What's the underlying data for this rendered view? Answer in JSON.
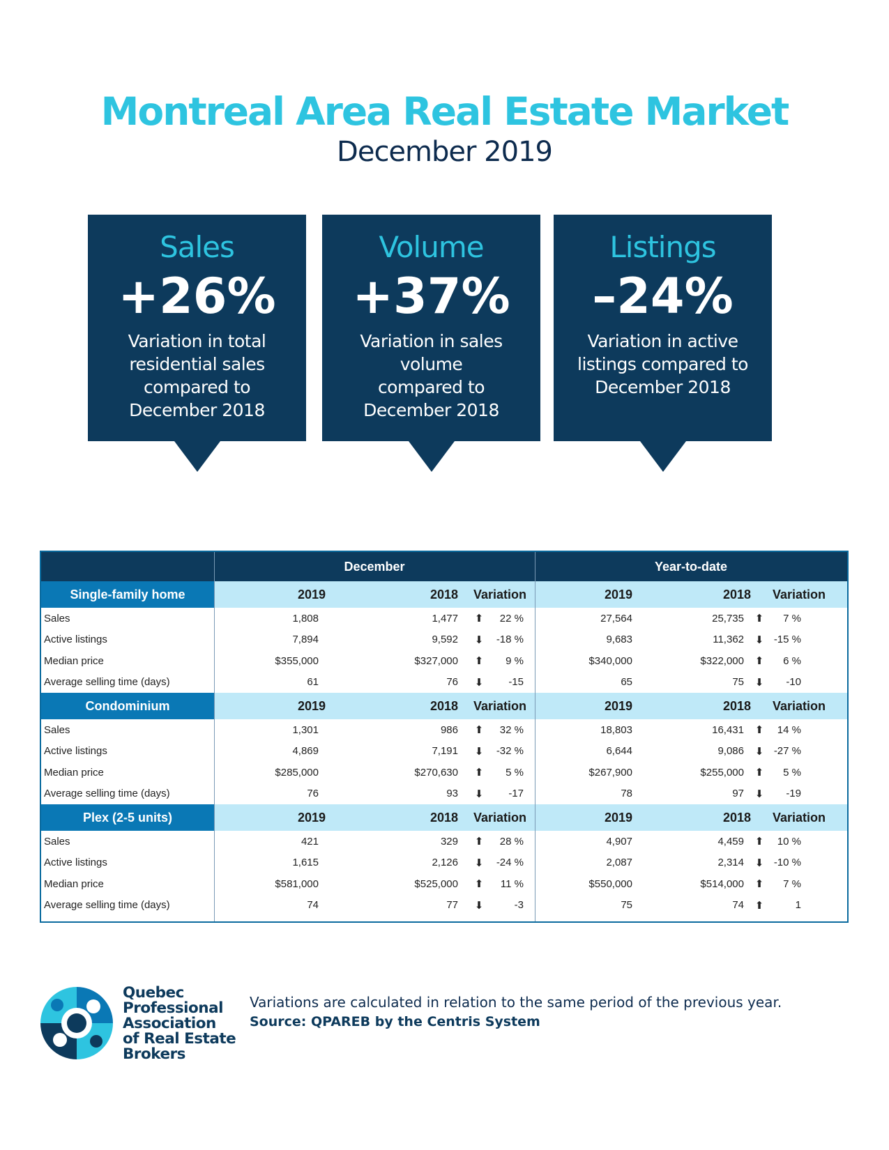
{
  "header": {
    "title": "Montreal Area Real Estate Market",
    "subtitle": "December 2019"
  },
  "cards": [
    {
      "label": "Sales",
      "value": "+26%",
      "lines": [
        "Variation in total",
        "residential sales",
        "compared to",
        "December 2018"
      ]
    },
    {
      "label": "Volume",
      "value": "+37%",
      "lines": [
        "Variation in sales volume",
        "compared to",
        "December 2018"
      ]
    },
    {
      "label": "Listings",
      "value": "–24%",
      "lines": [
        "Variation in active",
        "listings compared to",
        "December 2018"
      ]
    }
  ],
  "table": {
    "period_headers": [
      "December",
      "Year-to-date"
    ],
    "col_headers": [
      "2019",
      "2018",
      "Variation",
      "2019",
      "2018",
      "Variation"
    ],
    "sections": [
      {
        "category": "Single-family home",
        "rows": [
          {
            "label": "Sales",
            "dec_2019": "1,808",
            "dec_2018": "1,477",
            "dec_dir": "up",
            "dec_var": "22 %",
            "ytd_2019": "27,564",
            "ytd_2018": "25,735",
            "ytd_dir": "up",
            "ytd_var": "7 %"
          },
          {
            "label": "Active listings",
            "dec_2019": "7,894",
            "dec_2018": "9,592",
            "dec_dir": "down",
            "dec_var": "-18 %",
            "ytd_2019": "9,683",
            "ytd_2018": "11,362",
            "ytd_dir": "down",
            "ytd_var": "-15 %"
          },
          {
            "label": "Median price",
            "dec_2019": "$355,000",
            "dec_2018": "$327,000",
            "dec_dir": "up",
            "dec_var": "9 %",
            "ytd_2019": "$340,000",
            "ytd_2018": "$322,000",
            "ytd_dir": "up",
            "ytd_var": "6 %"
          },
          {
            "label": "Average selling time (days)",
            "dec_2019": "61",
            "dec_2018": "76",
            "dec_dir": "down",
            "dec_var": "-15",
            "ytd_2019": "65",
            "ytd_2018": "75",
            "ytd_dir": "down",
            "ytd_var": "-10"
          }
        ]
      },
      {
        "category": "Condominium",
        "rows": [
          {
            "label": "Sales",
            "dec_2019": "1,301",
            "dec_2018": "986",
            "dec_dir": "up",
            "dec_var": "32 %",
            "ytd_2019": "18,803",
            "ytd_2018": "16,431",
            "ytd_dir": "up",
            "ytd_var": "14 %"
          },
          {
            "label": "Active listings",
            "dec_2019": "4,869",
            "dec_2018": "7,191",
            "dec_dir": "down",
            "dec_var": "-32 %",
            "ytd_2019": "6,644",
            "ytd_2018": "9,086",
            "ytd_dir": "down",
            "ytd_var": "-27 %"
          },
          {
            "label": "Median price",
            "dec_2019": "$285,000",
            "dec_2018": "$270,630",
            "dec_dir": "up",
            "dec_var": "5 %",
            "ytd_2019": "$267,900",
            "ytd_2018": "$255,000",
            "ytd_dir": "up",
            "ytd_var": "5 %"
          },
          {
            "label": "Average selling time (days)",
            "dec_2019": "76",
            "dec_2018": "93",
            "dec_dir": "down",
            "dec_var": "-17",
            "ytd_2019": "78",
            "ytd_2018": "97",
            "ytd_dir": "down",
            "ytd_var": "-19"
          }
        ]
      },
      {
        "category": "Plex (2-5 units)",
        "rows": [
          {
            "label": "Sales",
            "dec_2019": "421",
            "dec_2018": "329",
            "dec_dir": "up",
            "dec_var": "28 %",
            "ytd_2019": "4,907",
            "ytd_2018": "4,459",
            "ytd_dir": "up",
            "ytd_var": "10 %"
          },
          {
            "label": "Active listings",
            "dec_2019": "1,615",
            "dec_2018": "2,126",
            "dec_dir": "down",
            "dec_var": "-24 %",
            "ytd_2019": "2,087",
            "ytd_2018": "2,314",
            "ytd_dir": "down",
            "ytd_var": "-10 %"
          },
          {
            "label": "Median price",
            "dec_2019": "$581,000",
            "dec_2018": "$525,000",
            "dec_dir": "up",
            "dec_var": "11 %",
            "ytd_2019": "$550,000",
            "ytd_2018": "$514,000",
            "ytd_dir": "up",
            "ytd_var": "7 %"
          },
          {
            "label": "Average selling time (days)",
            "dec_2019": "74",
            "dec_2018": "77",
            "dec_dir": "down",
            "dec_var": "-3",
            "ytd_2019": "75",
            "ytd_2018": "74",
            "ytd_dir": "up",
            "ytd_var": "1"
          }
        ]
      }
    ]
  },
  "footer": {
    "org_lines": [
      "Quebec",
      "Professional",
      "Association",
      "of Real Estate",
      "Brokers"
    ],
    "note": "Variations are calculated in relation to the same period of the previous year.",
    "source": "Source: QPAREB by the Centris System"
  },
  "colors": {
    "accent_cyan": "#2ec4e0",
    "navy": "#0d3a5c",
    "category_blue": "#0a78b5",
    "header_light": "#bfe9f8"
  },
  "icons": {
    "up": "arrow-up-icon",
    "down": "arrow-down-icon"
  }
}
